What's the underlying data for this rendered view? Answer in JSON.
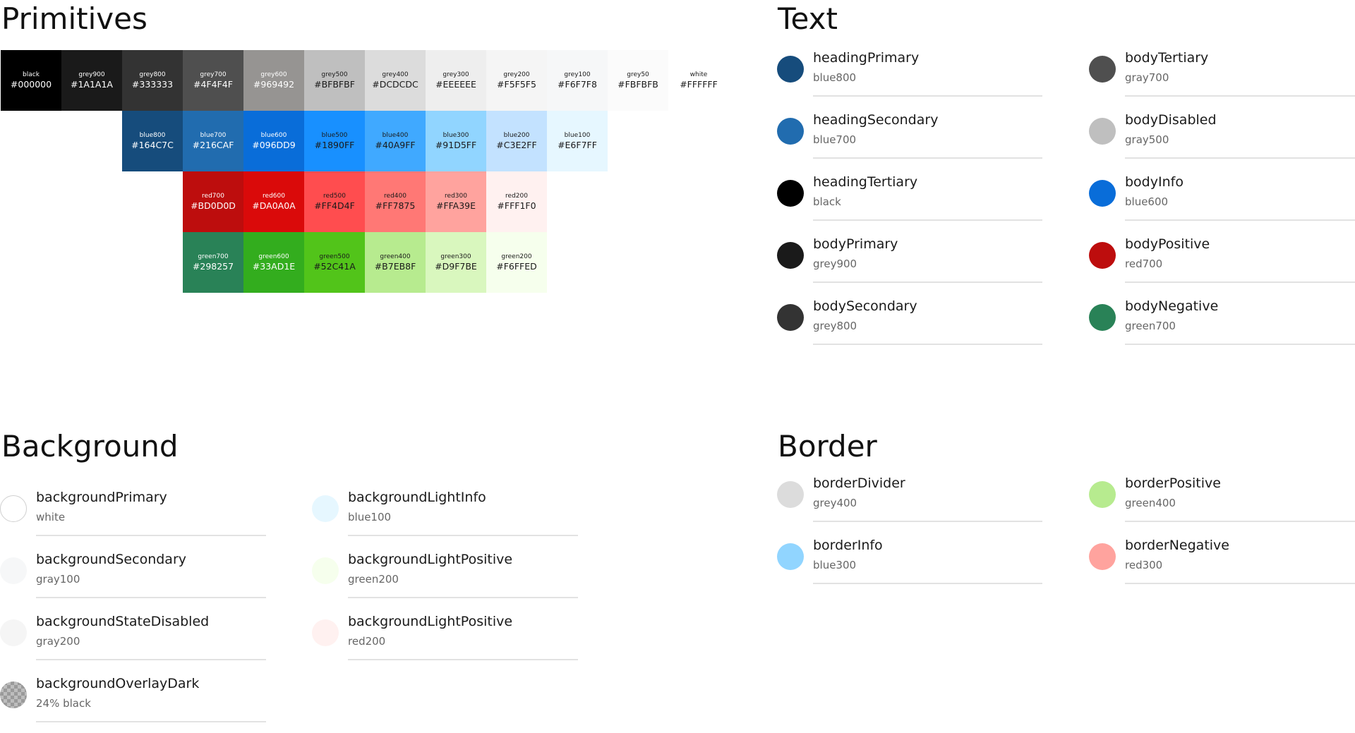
{
  "primitives": {
    "title": "Primitives",
    "rows": [
      [
        {
          "name": "black",
          "hex": "#000000",
          "color": "#000000",
          "text": "#FFFFFF"
        },
        {
          "name": "grey900",
          "hex": "#1A1A1A",
          "color": "#1A1A1A",
          "text": "#FFFFFF"
        },
        {
          "name": "grey800",
          "hex": "#333333",
          "color": "#333333",
          "text": "#FFFFFF"
        },
        {
          "name": "grey700",
          "hex": "#4F4F4F",
          "color": "#4F4F4F",
          "text": "#FFFFFF"
        },
        {
          "name": "grey600",
          "hex": "#969492",
          "color": "#969492",
          "text": "#FFFFFF"
        },
        {
          "name": "grey500",
          "hex": "#BFBFBF",
          "color": "#BFBFBF",
          "text": "#1A1A1A"
        },
        {
          "name": "grey400",
          "hex": "#DCDCDC",
          "color": "#DCDCDC",
          "text": "#1A1A1A"
        },
        {
          "name": "grey300",
          "hex": "#EEEEEE",
          "color": "#EEEEEE",
          "text": "#1A1A1A"
        },
        {
          "name": "grey200",
          "hex": "#F5F5F5",
          "color": "#F5F5F5",
          "text": "#1A1A1A"
        },
        {
          "name": "grey100",
          "hex": "#F6F7F8",
          "color": "#F6F7F8",
          "text": "#1A1A1A"
        },
        {
          "name": "grey50",
          "hex": "#FBFBFB",
          "color": "#FBFBFB",
          "text": "#1A1A1A"
        },
        {
          "name": "white",
          "hex": "#FFFFFF",
          "color": "#FFFFFF",
          "text": "#1A1A1A"
        }
      ],
      [
        {
          "name": "blue800",
          "hex": "#164C7C",
          "color": "#164C7C",
          "text": "#FFFFFF"
        },
        {
          "name": "blue700",
          "hex": "#216CAF",
          "color": "#216CAF",
          "text": "#FFFFFF"
        },
        {
          "name": "blue600",
          "hex": "#096DD9",
          "color": "#096DD9",
          "text": "#FFFFFF"
        },
        {
          "name": "blue500",
          "hex": "#1890FF",
          "color": "#1890FF",
          "text": "#1A1A1A"
        },
        {
          "name": "blue400",
          "hex": "#40A9FF",
          "color": "#40A9FF",
          "text": "#1A1A1A"
        },
        {
          "name": "blue300",
          "hex": "#91D5FF",
          "color": "#91D5FF",
          "text": "#1A1A1A"
        },
        {
          "name": "blue200",
          "hex": "#C3E2FF",
          "color": "#C3E2FF",
          "text": "#1A1A1A"
        },
        {
          "name": "blue100",
          "hex": "#E6F7FF",
          "color": "#E6F7FF",
          "text": "#1A1A1A"
        }
      ],
      [
        {
          "name": "red700",
          "hex": "#BD0D0D",
          "color": "#BD0D0D",
          "text": "#FFFFFF"
        },
        {
          "name": "red600",
          "hex": "#DA0A0A",
          "color": "#DA0A0A",
          "text": "#FFFFFF"
        },
        {
          "name": "red500",
          "hex": "#FF4D4F",
          "color": "#FF4D4F",
          "text": "#1A1A1A"
        },
        {
          "name": "red400",
          "hex": "#FF7875",
          "color": "#FF7875",
          "text": "#1A1A1A"
        },
        {
          "name": "red300",
          "hex": "#FFA39E",
          "color": "#FFA39E",
          "text": "#1A1A1A"
        },
        {
          "name": "red200",
          "hex": "#FFF1F0",
          "color": "#FFF1F0",
          "text": "#1A1A1A"
        }
      ],
      [
        {
          "name": "green700",
          "hex": "#298257",
          "color": "#298257",
          "text": "#FFFFFF"
        },
        {
          "name": "green600",
          "hex": "#33AD1E",
          "color": "#33AD1E",
          "text": "#FFFFFF"
        },
        {
          "name": "green500",
          "hex": "#52C41A",
          "color": "#52C41A",
          "text": "#1A1A1A"
        },
        {
          "name": "green400",
          "hex": "#B7EB8F",
          "color": "#B7EB8F",
          "text": "#1A1A1A"
        },
        {
          "name": "green300",
          "hex": "#D9F7BE",
          "color": "#D9F7BE",
          "text": "#1A1A1A"
        },
        {
          "name": "green200",
          "hex": "#F6FFED",
          "color": "#F6FFED",
          "text": "#1A1A1A"
        }
      ]
    ]
  },
  "text": {
    "title": "Text",
    "columns": [
      [
        {
          "name": "headingPrimary",
          "value": "blue800",
          "color": "#164C7C"
        },
        {
          "name": "headingSecondary",
          "value": "blue700",
          "color": "#216CAF"
        },
        {
          "name": "headingTertiary",
          "value": "black",
          "color": "#000000"
        },
        {
          "name": "bodyPrimary",
          "value": "grey900",
          "color": "#1A1A1A"
        },
        {
          "name": "bodySecondary",
          "value": "grey800",
          "color": "#333333"
        }
      ],
      [
        {
          "name": "bodyTertiary",
          "value": "gray700",
          "color": "#4F4F4F"
        },
        {
          "name": "bodyDisabled",
          "value": "gray500",
          "color": "#BFBFBF"
        },
        {
          "name": "bodyInfo",
          "value": "blue600",
          "color": "#096DD9"
        },
        {
          "name": "bodyPositive",
          "value": "red700",
          "color": "#BD0D0D"
        },
        {
          "name": "bodyNegative",
          "value": "green700",
          "color": "#298257"
        }
      ]
    ]
  },
  "background": {
    "title": "Background",
    "columns": [
      [
        {
          "name": "backgroundPrimary",
          "value": "white",
          "color": "#FFFFFF"
        },
        {
          "name": "backgroundSecondary",
          "value": "gray100",
          "color": "#F6F7F8"
        },
        {
          "name": "backgroundStateDisabled",
          "value": "gray200",
          "color": "#F5F5F5"
        },
        {
          "name": "backgroundOverlayDark",
          "value": "24% black",
          "color": "#BDBDBD",
          "pattern": "checker"
        }
      ],
      [
        {
          "name": "backgroundLightInfo",
          "value": "blue100",
          "color": "#E6F7FF"
        },
        {
          "name": "backgroundLightPositive",
          "value": "green200",
          "color": "#F6FFED"
        },
        {
          "name": "backgroundLightPositive",
          "value": "red200",
          "color": "#FFF1F0"
        }
      ]
    ]
  },
  "border": {
    "title": "Border",
    "columns": [
      [
        {
          "name": "borderDivider",
          "value": "grey400",
          "color": "#DCDCDC"
        },
        {
          "name": "borderInfo",
          "value": "blue300",
          "color": "#91D5FF"
        }
      ],
      [
        {
          "name": "borderPositive",
          "value": "green400",
          "color": "#B7EB8F"
        },
        {
          "name": "borderNegative",
          "value": "red300",
          "color": "#FFA39E"
        }
      ]
    ]
  }
}
